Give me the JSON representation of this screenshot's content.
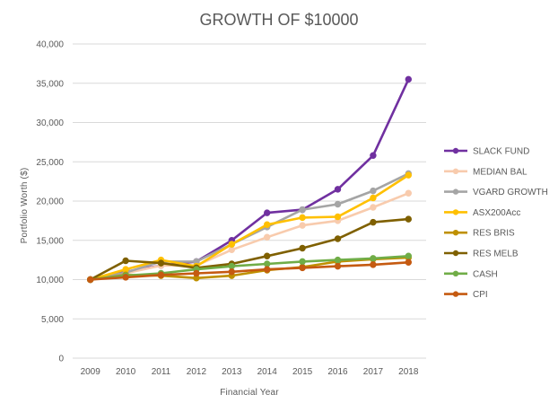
{
  "chart_data": {
    "type": "line",
    "title": "GROWTH OF $10000",
    "xlabel": "Financial Year",
    "ylabel": "Portfolio Worth ($)",
    "x": [
      "2009",
      "2010",
      "2011",
      "2012",
      "2013",
      "2014",
      "2015",
      "2016",
      "2017",
      "2018"
    ],
    "ylim": [
      0,
      40000
    ],
    "ytick_labels": [
      "0",
      "5,000",
      "10,000",
      "15,000",
      "20,000",
      "25,000",
      "30,000",
      "35,000",
      "40,000"
    ],
    "grid": true,
    "legend_position": "right",
    "series": [
      {
        "name": "SLACK FUND",
        "color": "#7030a0",
        "values": [
          10000,
          11000,
          11800,
          12300,
          15000,
          18500,
          18900,
          21500,
          25800,
          35500
        ]
      },
      {
        "name": "MEDIAN BAL",
        "color": "#f8cbad",
        "values": [
          10000,
          10800,
          11800,
          11800,
          13800,
          15400,
          16900,
          17500,
          19200,
          21000
        ]
      },
      {
        "name": "VGARD GROWTH",
        "color": "#a5a5a5",
        "values": [
          10000,
          10900,
          12300,
          12300,
          14500,
          16700,
          18900,
          19600,
          21300,
          23500
        ]
      },
      {
        "name": "ASX200Acc",
        "color": "#ffc000",
        "values": [
          10000,
          11300,
          12500,
          11700,
          14500,
          17000,
          17900,
          18000,
          20400,
          23300
        ]
      },
      {
        "name": "RES BRIS",
        "color": "#bf9000",
        "values": [
          10000,
          10600,
          10500,
          10200,
          10500,
          11200,
          11600,
          12300,
          12600,
          12800
        ]
      },
      {
        "name": "RES MELB",
        "color": "#7f6000",
        "values": [
          10000,
          12400,
          12100,
          11500,
          12000,
          13000,
          14000,
          15200,
          17300,
          17700
        ]
      },
      {
        "name": "CASH",
        "color": "#70ad47",
        "values": [
          10000,
          10500,
          10800,
          11300,
          11700,
          12000,
          12300,
          12500,
          12700,
          13000
        ]
      },
      {
        "name": "CPI",
        "color": "#c55a11",
        "values": [
          10000,
          10300,
          10600,
          10800,
          11000,
          11300,
          11500,
          11700,
          11900,
          12200
        ]
      }
    ]
  }
}
